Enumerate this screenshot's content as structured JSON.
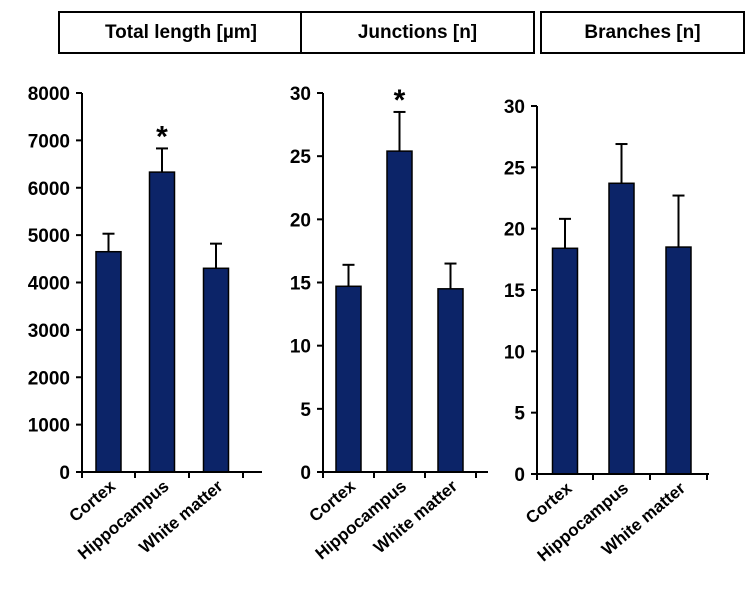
{
  "chart_data": [
    {
      "type": "bar",
      "title": "Total length [µm]",
      "categories": [
        "Cortex",
        "Hippocampus",
        "White matter"
      ],
      "series": [
        {
          "values": [
            4650,
            6330,
            4300
          ]
        }
      ],
      "errors": [
        380,
        500,
        520
      ],
      "significance": [
        "",
        "*",
        ""
      ],
      "ylim": [
        0,
        8000
      ],
      "yticks": [
        0,
        1000,
        2000,
        3000,
        4000,
        5000,
        6000,
        7000,
        8000
      ],
      "bar_color": "#0c2468"
    },
    {
      "type": "bar",
      "title": "Junctions [n]",
      "categories": [
        "Cortex",
        "Hippocampus",
        "White matter"
      ],
      "series": [
        {
          "values": [
            14.7,
            25.4,
            14.5
          ]
        }
      ],
      "errors": [
        1.7,
        3.1,
        2.0
      ],
      "significance": [
        "",
        "*",
        ""
      ],
      "ylim": [
        0,
        30
      ],
      "yticks": [
        0,
        5,
        10,
        15,
        20,
        25,
        30
      ],
      "bar_color": "#0c2468"
    },
    {
      "type": "bar",
      "title": "Branches [n]",
      "categories": [
        "Cortex",
        "Hippocampus",
        "White matter"
      ],
      "series": [
        {
          "values": [
            18.4,
            23.7,
            18.5
          ]
        }
      ],
      "errors": [
        2.4,
        3.2,
        4.2
      ],
      "significance": [
        "",
        "",
        ""
      ],
      "ylim": [
        0,
        30
      ],
      "yticks": [
        0,
        5,
        10,
        15,
        20,
        25,
        30
      ],
      "bar_color": "#0c2468"
    }
  ]
}
